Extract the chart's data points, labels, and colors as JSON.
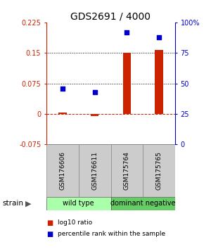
{
  "title": "GDS2691 / 4000",
  "samples": [
    "GSM176606",
    "GSM176611",
    "GSM175764",
    "GSM175765"
  ],
  "log10_ratio": [
    0.003,
    -0.005,
    0.15,
    0.158
  ],
  "percentile_rank": [
    46,
    43,
    92,
    88
  ],
  "left_ylim": [
    -0.075,
    0.225
  ],
  "right_ylim": [
    0,
    100
  ],
  "left_yticks": [
    -0.075,
    0,
    0.075,
    0.15,
    0.225
  ],
  "right_yticks": [
    0,
    25,
    50,
    75,
    100
  ],
  "right_yticklabels": [
    "0",
    "25",
    "50",
    "75",
    "100%"
  ],
  "hline_dotted": [
    0.075,
    0.15
  ],
  "hline_dashed": 0.0,
  "bar_color": "#cc2200",
  "scatter_color": "#0000cc",
  "groups": [
    {
      "label": "wild type",
      "samples": [
        0,
        1
      ],
      "color": "#aaffaa"
    },
    {
      "label": "dominant negative",
      "samples": [
        2,
        3
      ],
      "color": "#66cc66"
    }
  ],
  "legend_bar_label": "log10 ratio",
  "legend_scatter_label": "percentile rank within the sample",
  "strain_label": "strain",
  "background_color": "#ffffff",
  "plot_bg_color": "#ffffff",
  "sample_box_color": "#cccccc",
  "figsize": [
    3.0,
    3.54
  ],
  "dpi": 100
}
